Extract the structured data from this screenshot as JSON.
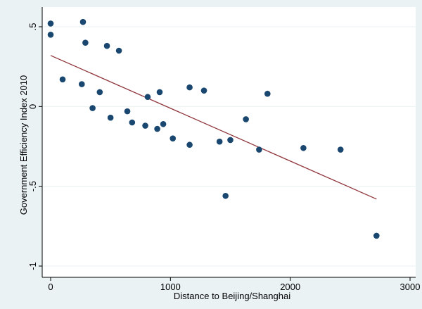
{
  "chart_data": {
    "type": "scatter",
    "title": "",
    "xlabel": "Distance to Beijing/Shanghai",
    "ylabel": "Government Efficiency Index 2010",
    "xlim": [
      0,
      3000
    ],
    "ylim": [
      -1,
      0.5
    ],
    "x_ticks": [
      {
        "value": 0,
        "label": "0"
      },
      {
        "value": 1000,
        "label": "1000"
      },
      {
        "value": 2000,
        "label": "2000"
      },
      {
        "value": 3000,
        "label": "3000"
      }
    ],
    "y_ticks": [
      {
        "value": 0.5,
        "label": ".5"
      },
      {
        "value": 0,
        "label": "0"
      },
      {
        "value": -0.5,
        "label": "-.5"
      },
      {
        "value": -1,
        "label": "-1"
      }
    ],
    "grid": "horizontal",
    "colors": {
      "background": "#eaf2f3",
      "plot_area": "#ffffff",
      "grid": "#eaf2f3",
      "points": "#1a476f",
      "fit_line": "#90353b"
    },
    "points": [
      {
        "x": 0,
        "y": 0.52
      },
      {
        "x": 0,
        "y": 0.45
      },
      {
        "x": 100,
        "y": 0.17
      },
      {
        "x": 270,
        "y": 0.53
      },
      {
        "x": 260,
        "y": 0.14
      },
      {
        "x": 290,
        "y": 0.4
      },
      {
        "x": 350,
        "y": -0.01
      },
      {
        "x": 410,
        "y": 0.09
      },
      {
        "x": 470,
        "y": 0.38
      },
      {
        "x": 500,
        "y": -0.07
      },
      {
        "x": 570,
        "y": 0.35
      },
      {
        "x": 640,
        "y": -0.03
      },
      {
        "x": 680,
        "y": -0.1
      },
      {
        "x": 790,
        "y": -0.12
      },
      {
        "x": 810,
        "y": 0.06
      },
      {
        "x": 890,
        "y": -0.14
      },
      {
        "x": 910,
        "y": 0.09
      },
      {
        "x": 940,
        "y": -0.11
      },
      {
        "x": 1020,
        "y": -0.2
      },
      {
        "x": 1160,
        "y": 0.12
      },
      {
        "x": 1160,
        "y": -0.24
      },
      {
        "x": 1280,
        "y": 0.1
      },
      {
        "x": 1410,
        "y": -0.22
      },
      {
        "x": 1460,
        "y": -0.56
      },
      {
        "x": 1500,
        "y": -0.21
      },
      {
        "x": 1630,
        "y": -0.08
      },
      {
        "x": 1740,
        "y": -0.27
      },
      {
        "x": 1810,
        "y": 0.08
      },
      {
        "x": 2110,
        "y": -0.26
      },
      {
        "x": 2420,
        "y": -0.27
      },
      {
        "x": 2720,
        "y": -0.81
      }
    ],
    "fit_line": {
      "x": [
        0,
        2720
      ],
      "y": [
        0.32,
        -0.58
      ]
    }
  }
}
